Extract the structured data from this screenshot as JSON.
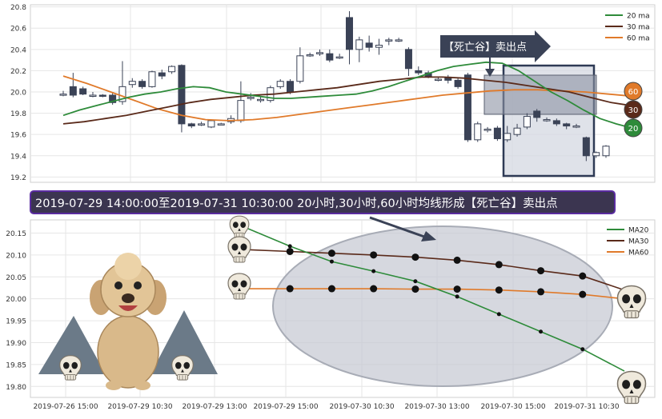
{
  "chart_data": [
    {
      "type": "candlestick",
      "ylim": [
        19.15,
        20.82
      ],
      "yticks": [
        "20.8",
        "20.6",
        "20.4",
        "20.2",
        "20.0",
        "19.8",
        "19.6",
        "19.4",
        "19.2"
      ],
      "ytick_values": [
        20.8,
        20.6,
        20.4,
        20.2,
        20.0,
        19.8,
        19.6,
        19.4,
        19.2
      ],
      "grid": true,
      "legend_position": "top-right",
      "legend": [
        {
          "name": "20 ma",
          "color": "#2e8b3a"
        },
        {
          "name": "30 ma",
          "color": "#5a2a1a"
        },
        {
          "name": "60 ma",
          "color": "#e07a2a"
        }
      ],
      "candles": [
        {
          "o": 19.98,
          "c": 19.98,
          "h": 20.01,
          "l": 19.96
        },
        {
          "o": 20.05,
          "c": 19.97,
          "h": 20.18,
          "l": 19.95
        },
        {
          "o": 20.03,
          "c": 19.98,
          "h": 20.05,
          "l": 19.97
        },
        {
          "o": 19.97,
          "c": 19.97,
          "h": 20.0,
          "l": 19.95
        },
        {
          "o": 19.97,
          "c": 19.96,
          "h": 19.98,
          "l": 19.95
        },
        {
          "o": 19.97,
          "c": 19.9,
          "h": 19.99,
          "l": 19.88
        },
        {
          "o": 19.91,
          "c": 20.05,
          "h": 20.29,
          "l": 19.88
        },
        {
          "o": 20.07,
          "c": 20.1,
          "h": 20.13,
          "l": 20.04
        },
        {
          "o": 20.1,
          "c": 20.05,
          "h": 20.12,
          "l": 20.03
        },
        {
          "o": 20.05,
          "c": 20.19,
          "h": 20.2,
          "l": 20.04
        },
        {
          "o": 20.18,
          "c": 20.15,
          "h": 20.21,
          "l": 20.12
        },
        {
          "o": 20.19,
          "c": 20.24,
          "h": 20.25,
          "l": 20.17
        },
        {
          "o": 20.25,
          "c": 19.7,
          "h": 20.26,
          "l": 19.62
        },
        {
          "o": 19.7,
          "c": 19.68,
          "h": 19.71,
          "l": 19.66
        },
        {
          "o": 19.7,
          "c": 19.7,
          "h": 19.72,
          "l": 19.68
        },
        {
          "o": 19.67,
          "c": 19.73,
          "h": 19.74,
          "l": 19.66
        },
        {
          "o": 19.7,
          "c": 19.7,
          "h": 19.71,
          "l": 19.69
        },
        {
          "o": 19.72,
          "c": 19.75,
          "h": 19.78,
          "l": 19.7
        },
        {
          "o": 19.73,
          "c": 19.92,
          "h": 20.1,
          "l": 19.71
        },
        {
          "o": 19.95,
          "c": 19.95,
          "h": 19.99,
          "l": 19.92
        },
        {
          "o": 19.92,
          "c": 19.93,
          "h": 19.96,
          "l": 19.9
        },
        {
          "o": 19.92,
          "c": 20.04,
          "h": 20.06,
          "l": 19.9
        },
        {
          "o": 20.05,
          "c": 20.1,
          "h": 20.12,
          "l": 20.03
        },
        {
          "o": 20.1,
          "c": 20.0,
          "h": 20.12,
          "l": 19.98
        },
        {
          "o": 20.1,
          "c": 20.34,
          "h": 20.42,
          "l": 20.08
        },
        {
          "o": 20.35,
          "c": 20.35,
          "h": 20.37,
          "l": 20.33
        },
        {
          "o": 20.37,
          "c": 20.37,
          "h": 20.4,
          "l": 20.34
        },
        {
          "o": 20.36,
          "c": 20.3,
          "h": 20.4,
          "l": 20.28
        },
        {
          "o": 20.33,
          "c": 20.33,
          "h": 20.36,
          "l": 20.31
        },
        {
          "o": 20.7,
          "c": 20.4,
          "h": 20.76,
          "l": 20.26
        },
        {
          "o": 20.4,
          "c": 20.49,
          "h": 20.52,
          "l": 20.28
        },
        {
          "o": 20.46,
          "c": 20.42,
          "h": 20.53,
          "l": 20.38
        },
        {
          "o": 20.42,
          "c": 20.44,
          "h": 20.5,
          "l": 20.35
        },
        {
          "o": 20.49,
          "c": 20.49,
          "h": 20.51,
          "l": 20.44
        },
        {
          "o": 20.49,
          "c": 20.49,
          "h": 20.51,
          "l": 20.47
        },
        {
          "o": 20.4,
          "c": 20.22,
          "h": 20.42,
          "l": 20.15
        },
        {
          "o": 20.2,
          "c": 20.18,
          "h": 20.24,
          "l": 20.16
        },
        {
          "o": 20.18,
          "c": 20.15,
          "h": 20.2,
          "l": 20.13
        },
        {
          "o": 20.12,
          "c": 20.12,
          "h": 20.14,
          "l": 20.1
        },
        {
          "o": 20.14,
          "c": 20.11,
          "h": 20.16,
          "l": 20.08
        },
        {
          "o": 20.11,
          "c": 20.05,
          "h": 20.13,
          "l": 20.03
        },
        {
          "o": 20.16,
          "c": 19.55,
          "h": 20.18,
          "l": 19.53
        },
        {
          "o": 19.55,
          "c": 19.7,
          "h": 19.72,
          "l": 19.53
        },
        {
          "o": 19.65,
          "c": 19.65,
          "h": 19.67,
          "l": 19.62
        },
        {
          "o": 19.66,
          "c": 19.56,
          "h": 19.68,
          "l": 19.54
        },
        {
          "o": 19.55,
          "c": 19.61,
          "h": 19.68,
          "l": 19.53
        },
        {
          "o": 19.6,
          "c": 19.66,
          "h": 19.7,
          "l": 19.58
        },
        {
          "o": 19.67,
          "c": 19.77,
          "h": 19.8,
          "l": 19.65
        },
        {
          "o": 19.82,
          "c": 19.76,
          "h": 19.84,
          "l": 19.72
        },
        {
          "o": 19.74,
          "c": 19.74,
          "h": 19.76,
          "l": 19.72
        },
        {
          "o": 19.73,
          "c": 19.7,
          "h": 19.75,
          "l": 19.68
        },
        {
          "o": 19.7,
          "c": 19.68,
          "h": 19.71,
          "l": 19.65
        },
        {
          "o": 19.68,
          "c": 19.68,
          "h": 19.7,
          "l": 19.66
        },
        {
          "o": 19.57,
          "c": 19.4,
          "h": 19.58,
          "l": 19.35
        },
        {
          "o": 19.4,
          "c": 19.43,
          "h": 19.44,
          "l": 19.38
        },
        {
          "o": 19.4,
          "c": 19.49,
          "h": 19.5,
          "l": 19.38
        }
      ],
      "ma20": [
        19.78,
        19.83,
        19.87,
        19.91,
        19.95,
        19.98,
        20.0,
        20.03,
        20.05,
        20.04,
        20.0,
        19.98,
        19.96,
        19.94,
        19.94,
        19.95,
        19.96,
        19.97,
        19.98,
        20.01,
        20.05,
        20.1,
        20.15,
        20.2,
        20.24,
        20.26,
        20.28,
        20.27,
        20.2,
        20.1,
        20.0,
        19.92,
        19.83,
        19.75,
        19.7,
        19.66
      ],
      "ma30": [
        19.7,
        19.72,
        19.75,
        19.78,
        19.82,
        19.86,
        19.9,
        19.93,
        19.95,
        19.97,
        19.98,
        20.0,
        20.02,
        20.04,
        20.07,
        20.1,
        20.12,
        20.14,
        20.14,
        20.13,
        20.11,
        20.09,
        20.06,
        20.03,
        20.0,
        19.95,
        19.9,
        19.87
      ],
      "ma60": [
        20.15,
        20.08,
        20.0,
        19.92,
        19.84,
        19.78,
        19.74,
        19.73,
        19.74,
        19.76,
        19.79,
        19.82,
        19.85,
        19.88,
        19.91,
        19.94,
        19.97,
        19.99,
        20.01,
        20.02,
        20.02,
        20.01,
        20.0,
        19.98,
        19.96
      ],
      "end_badges": [
        {
          "label": "60",
          "value": 19.96,
          "color": "#e07a2a"
        },
        {
          "label": "30",
          "value": 19.86,
          "color": "#5a2a1a"
        },
        {
          "label": "20",
          "value": 19.66,
          "color": "#2e8b3a"
        }
      ],
      "callout": "【死亡谷】卖出点"
    },
    {
      "type": "line",
      "title_banner": "2019-07-29 14:00:00至2019-07-31 10:30:00 20小时,30小时,60小时均线形成【死亡谷】卖出点",
      "categories": [
        "2019-07-26 15:00",
        "2019-07-29 10:30",
        "2019-07-29 13:00",
        "2019-07-29 15:00",
        "2019-07-30 10:30",
        "2019-07-30 13:00",
        "2019-07-30 15:00",
        "2019-07-31 10:30"
      ],
      "ylim": [
        19.775,
        20.18
      ],
      "yticks": [
        "20.15",
        "20.10",
        "20.05",
        "20.00",
        "19.95",
        "19.90",
        "19.85",
        "19.80"
      ],
      "ytick_values": [
        20.15,
        20.1,
        20.05,
        20.0,
        19.95,
        19.9,
        19.85,
        19.8
      ],
      "grid": true,
      "legend_position": "top-right",
      "series": [
        {
          "name": "MA20",
          "color": "#2e8b3a",
          "x": [
            0,
            1,
            2,
            3,
            4,
            5,
            6,
            7,
            8,
            9
          ],
          "values": [
            20.16,
            20.12,
            20.085,
            20.063,
            20.04,
            20.005,
            19.965,
            19.925,
            19.885,
            19.835
          ]
        },
        {
          "name": "MA30",
          "color": "#5a2a1a",
          "x": [
            0,
            1,
            2,
            3,
            4,
            5,
            6,
            7,
            8,
            9
          ],
          "values": [
            20.112,
            20.108,
            20.104,
            20.1,
            20.095,
            20.088,
            20.078,
            20.064,
            20.052,
            20.02
          ]
        },
        {
          "name": "MA60",
          "color": "#e07a2a",
          "x": [
            0,
            1,
            2,
            3,
            4,
            5,
            6,
            7,
            8,
            9
          ],
          "values": [
            20.023,
            20.023,
            20.023,
            20.023,
            20.022,
            20.022,
            20.02,
            20.016,
            20.01,
            20.0
          ]
        }
      ]
    }
  ]
}
